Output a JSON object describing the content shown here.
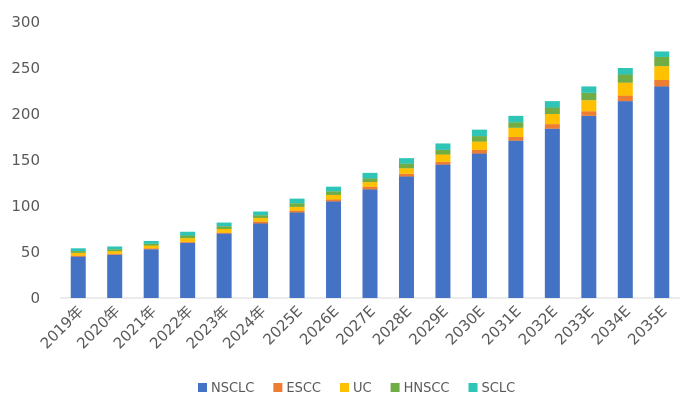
{
  "chart_data": {
    "type": "bar",
    "stacked": true,
    "categories": [
      "2019年",
      "2020年",
      "2021年",
      "2022年",
      "2023年",
      "2024年",
      "2025E",
      "2026E",
      "2027E",
      "2028E",
      "2029E",
      "2030E",
      "2031E",
      "2032E",
      "2033E",
      "2034E",
      "2035E"
    ],
    "series": [
      {
        "name": "NSCLC",
        "color": "#4472C4",
        "values": [
          45,
          47,
          53,
          60,
          70,
          81,
          93,
          105,
          118,
          132,
          145,
          157,
          171,
          184,
          198,
          214,
          230
        ]
      },
      {
        "name": "ESCC",
        "color": "#ED7D31",
        "values": [
          1,
          1,
          1,
          1,
          1,
          2,
          2,
          2,
          3,
          3,
          3,
          4,
          4,
          5,
          5,
          6,
          7
        ]
      },
      {
        "name": "UC",
        "color": "#FFC000",
        "values": [
          3,
          3,
          3,
          4,
          4,
          4,
          4,
          5,
          5,
          6,
          8,
          9,
          10,
          11,
          12,
          14,
          15
        ]
      },
      {
        "name": "HNSCC",
        "color": "#70AD47",
        "values": [
          2,
          2,
          2,
          3,
          3,
          3,
          4,
          4,
          4,
          5,
          5,
          6,
          6,
          7,
          8,
          9,
          10
        ]
      },
      {
        "name": "SCLC",
        "color": "#2EC4B6",
        "values": [
          3,
          3,
          3,
          4,
          4,
          4,
          5,
          5,
          6,
          6,
          7,
          7,
          7,
          7,
          7,
          7,
          6
        ]
      }
    ],
    "ylim": [
      0,
      300
    ],
    "yticks": [
      0,
      50,
      100,
      150,
      200,
      250,
      300
    ],
    "grid": false,
    "legend": "bottom",
    "title": "",
    "xlabel": "",
    "ylabel": ""
  }
}
